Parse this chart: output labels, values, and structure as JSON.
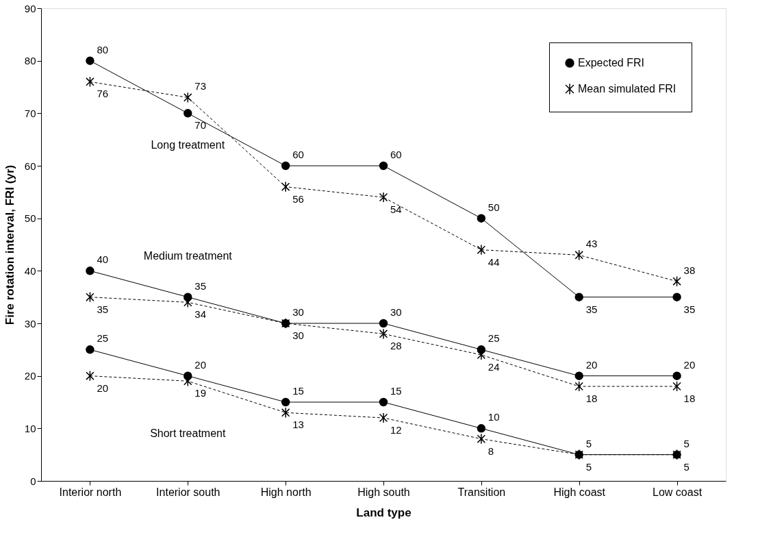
{
  "chart_data": {
    "type": "line",
    "xlabel": "Land type",
    "ylabel": "Fire rotation interval, FRI (yr)",
    "categories": [
      "Interior north",
      "Interior south",
      "High north",
      "High south",
      "Transition",
      "High coast",
      "Low coast"
    ],
    "series": [
      {
        "name": "Expected FRI",
        "color": "#000000",
        "marker": "circle",
        "line_style": "solid",
        "values": [
          80,
          70,
          60,
          60,
          50,
          35,
          35
        ]
      },
      {
        "name": "Mean simulated FRI",
        "color": "#000000",
        "marker": "cross",
        "line_style": "dashed",
        "values": [
          76,
          73,
          56,
          54,
          44,
          43,
          38
        ]
      },
      {
        "color": "#000000",
        "marker": "circle",
        "line_style": "solid",
        "values": [
          40,
          35,
          30,
          30,
          25,
          20,
          20
        ]
      },
      {
        "color": "#000000",
        "marker": "cross",
        "line_style": "dashed",
        "values": [
          35,
          34,
          30,
          28,
          24,
          18,
          18
        ]
      },
      {
        "color": "#000000",
        "marker": "circle",
        "line_style": "solid",
        "values": [
          25,
          20,
          15,
          15,
          10,
          5,
          5
        ]
      },
      {
        "color": "#000000",
        "marker": "cross",
        "line_style": "dashed",
        "values": [
          20,
          19,
          13,
          12,
          8,
          5,
          5
        ]
      }
    ],
    "ylim": [
      0,
      90
    ],
    "yticks": [
      0,
      10,
      20,
      30,
      40,
      50,
      60,
      70,
      80,
      90
    ],
    "grid": false,
    "legend": "top right",
    "data_labels": true,
    "annotations": [
      "Long treatment",
      "Medium treatment",
      "Short treatment"
    ]
  }
}
